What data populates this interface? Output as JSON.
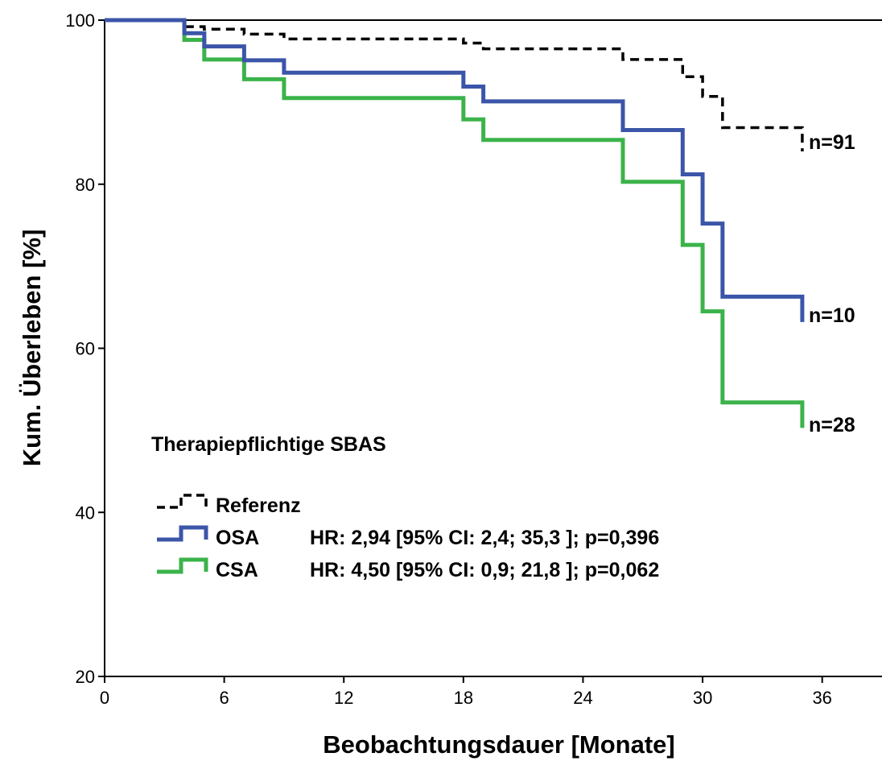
{
  "chart_data": {
    "type": "line",
    "step": true,
    "xlabel": "Beobachtungsdauer [Monate]",
    "ylabel": "Kum. Überleben [%]",
    "xlim": [
      0,
      39
    ],
    "ylim": [
      20,
      100
    ],
    "xticks": [
      0,
      6,
      12,
      18,
      24,
      30,
      36
    ],
    "yticks": [
      20,
      40,
      60,
      80,
      100
    ],
    "grid": false,
    "legend_title": "Therapiepflichtige SBAS",
    "legend_position": "bottom-left",
    "series": [
      {
        "name": "Referenz",
        "color": "#000000",
        "style": "dashed",
        "end_label": "n=91",
        "hr_text": "",
        "x": [
          0,
          4,
          5,
          7,
          9,
          18,
          19,
          26,
          29,
          30,
          31,
          35,
          35
        ],
        "y": [
          100,
          99.2,
          98.9,
          98.3,
          97.7,
          97.2,
          96.5,
          95.2,
          93.1,
          90.7,
          86.9,
          86.9,
          84.0
        ]
      },
      {
        "name": "OSA",
        "color": "#3b55a8",
        "style": "solid",
        "end_label": "n=10",
        "hr_text": "HR: 2,94 [95% CI: 2,4; 35,3 ]; p=0,396",
        "x": [
          0,
          4,
          5,
          7,
          9,
          18,
          19,
          26,
          29,
          30,
          31,
          35,
          35
        ],
        "y": [
          100,
          98.4,
          96.8,
          95.1,
          93.6,
          91.9,
          90.1,
          86.6,
          81.2,
          75.2,
          66.3,
          66.3,
          63.2
        ]
      },
      {
        "name": "CSA",
        "color": "#3bb34a",
        "style": "solid",
        "end_label": "n=28",
        "hr_text": "HR: 4,50 [95% CI: 0,9; 21,8 ]; p=0,062",
        "x": [
          0,
          4,
          5,
          7,
          9,
          18,
          19,
          26,
          29,
          30,
          31,
          35,
          35
        ],
        "y": [
          100,
          97.6,
          95.2,
          92.8,
          90.5,
          87.9,
          85.4,
          80.3,
          72.6,
          64.5,
          53.4,
          53.4,
          50.3
        ]
      }
    ]
  }
}
